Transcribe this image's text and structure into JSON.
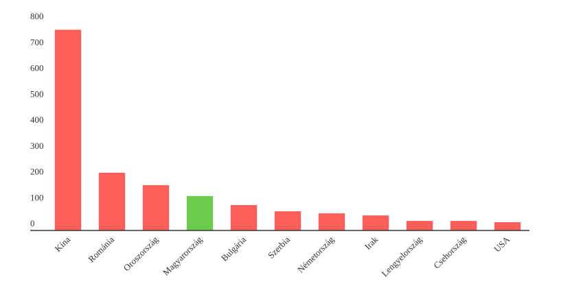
{
  "chart_data": {
    "type": "bar",
    "categories": [
      "Kína",
      "Románia",
      "Oroszország",
      "Magyarország",
      "Bulgária",
      "Szerbia",
      "Németország",
      "Irak",
      "Lengyelország",
      "Csehország",
      "USA"
    ],
    "values": [
      775,
      223,
      175,
      133,
      98,
      74,
      66,
      58,
      37,
      37,
      32
    ],
    "colors": [
      "#ff5e5b",
      "#ff5e5b",
      "#ff5e5b",
      "#6bcb4b",
      "#ff5e5b",
      "#ff5e5b",
      "#ff5e5b",
      "#ff5e5b",
      "#ff5e5b",
      "#ff5e5b",
      "#ff5e5b"
    ],
    "ylim": [
      0,
      800
    ],
    "yticks": [
      0,
      100,
      200,
      300,
      400,
      500,
      600,
      700,
      800
    ],
    "grid": false
  }
}
